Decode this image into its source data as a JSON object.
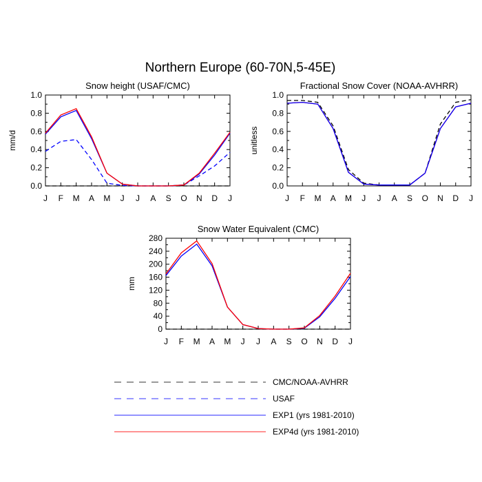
{
  "figure": {
    "title": "Northern Europe (60-70N,5-45E)"
  },
  "legend": {
    "items": [
      {
        "label": "CMC/NOAA-AVHRR",
        "color": "#000000",
        "dash": true
      },
      {
        "label": "USAF",
        "color": "#0000ff",
        "dash": true
      },
      {
        "label": "EXP1 (yrs 1981-2010)",
        "color": "#0000ff",
        "dash": false
      },
      {
        "label": "EXP4d (yrs 1981-2010)",
        "color": "#ff0000",
        "dash": false
      }
    ]
  },
  "chart_data": [
    {
      "type": "line",
      "title": "Snow height (USAF/CMC)",
      "xlabel": "",
      "ylabel": "mm/d",
      "categories": [
        "J",
        "F",
        "M",
        "A",
        "M",
        "J",
        "J",
        "A",
        "S",
        "O",
        "N",
        "D",
        "J"
      ],
      "ylim": [
        0,
        1.0
      ],
      "yticks": [
        0.0,
        0.2,
        0.4,
        0.6,
        0.8,
        1.0
      ],
      "ytick_labels": [
        "0.0",
        "0.2",
        "0.4",
        "0.6",
        "0.8",
        "1.0"
      ],
      "grid": false,
      "series": [
        {
          "name": "CMC/NOAA-AVHRR",
          "color": "#000000",
          "dash": true,
          "values": [
            0,
            0,
            0,
            0,
            0,
            0,
            0,
            0,
            0,
            0,
            0,
            0,
            0
          ]
        },
        {
          "name": "USAF",
          "color": "#0000ff",
          "dash": true,
          "values": [
            0.38,
            0.49,
            0.51,
            0.29,
            0.03,
            0.005,
            0,
            0,
            0,
            0.01,
            0.11,
            0.22,
            0.37
          ]
        },
        {
          "name": "EXP1 (yrs 1981-2010)",
          "color": "#0000ff",
          "dash": false,
          "values": [
            0.57,
            0.76,
            0.83,
            0.52,
            0.14,
            0.02,
            0,
            0,
            0,
            0.01,
            0.13,
            0.34,
            0.58
          ]
        },
        {
          "name": "EXP4d (yrs 1981-2010)",
          "color": "#ff0000",
          "dash": false,
          "values": [
            0.58,
            0.78,
            0.85,
            0.54,
            0.14,
            0.02,
            0,
            0,
            0,
            0.01,
            0.14,
            0.36,
            0.59
          ]
        }
      ]
    },
    {
      "type": "line",
      "title": "Fractional Snow Cover (NOAA-AVHRR)",
      "xlabel": "",
      "ylabel": "unitless",
      "categories": [
        "J",
        "F",
        "M",
        "A",
        "M",
        "J",
        "J",
        "A",
        "S",
        "O",
        "N",
        "D",
        "J"
      ],
      "ylim": [
        0,
        1.0
      ],
      "yticks": [
        0.0,
        0.2,
        0.4,
        0.6,
        0.8,
        1.0
      ],
      "ytick_labels": [
        "0.0",
        "0.2",
        "0.4",
        "0.6",
        "0.8",
        "1.0"
      ],
      "grid": false,
      "series": [
        {
          "name": "CMC/NOAA-AVHRR",
          "color": "#000000",
          "dash": true,
          "values": [
            0.94,
            0.94,
            0.92,
            0.66,
            0.18,
            0.03,
            0.01,
            0.01,
            0.01,
            0.14,
            0.68,
            0.92,
            0.95
          ]
        },
        {
          "name": "EXP4d (yrs 1981-2010)",
          "color": "#ff0000",
          "dash": false,
          "values": [
            0.91,
            0.92,
            0.9,
            0.63,
            0.15,
            0.02,
            0.01,
            0.01,
            0.01,
            0.14,
            0.63,
            0.87,
            0.91
          ]
        },
        {
          "name": "EXP1 (yrs 1981-2010)",
          "color": "#0000ff",
          "dash": false,
          "values": [
            0.91,
            0.92,
            0.9,
            0.63,
            0.15,
            0.02,
            0.01,
            0.01,
            0.01,
            0.14,
            0.63,
            0.87,
            0.91
          ]
        }
      ]
    },
    {
      "type": "line",
      "title": "Snow Water Equivalent (CMC)",
      "xlabel": "",
      "ylabel": "mm",
      "categories": [
        "J",
        "F",
        "M",
        "A",
        "M",
        "J",
        "J",
        "A",
        "S",
        "O",
        "N",
        "D",
        "J"
      ],
      "ylim": [
        0,
        280
      ],
      "yticks": [
        0,
        40,
        80,
        120,
        160,
        200,
        240,
        280
      ],
      "ytick_labels": [
        "0",
        "40",
        "80",
        "120",
        "160",
        "200",
        "240",
        "280"
      ],
      "grid": false,
      "series": [
        {
          "name": "CMC/NOAA-AVHRR",
          "color": "#000000",
          "dash": true,
          "values": [
            0,
            0,
            0,
            0,
            0,
            0,
            0,
            0,
            0,
            0,
            0,
            0,
            0
          ]
        },
        {
          "name": "EXP1 (yrs 1981-2010)",
          "color": "#0000ff",
          "dash": false,
          "values": [
            165,
            225,
            262,
            195,
            68,
            14,
            2,
            0,
            0,
            3,
            38,
            95,
            162
          ]
        },
        {
          "name": "EXP4d (yrs 1981-2010)",
          "color": "#ff0000",
          "dash": false,
          "values": [
            170,
            235,
            272,
            202,
            68,
            14,
            2,
            0,
            0,
            4,
            42,
            102,
            172
          ]
        }
      ]
    }
  ]
}
